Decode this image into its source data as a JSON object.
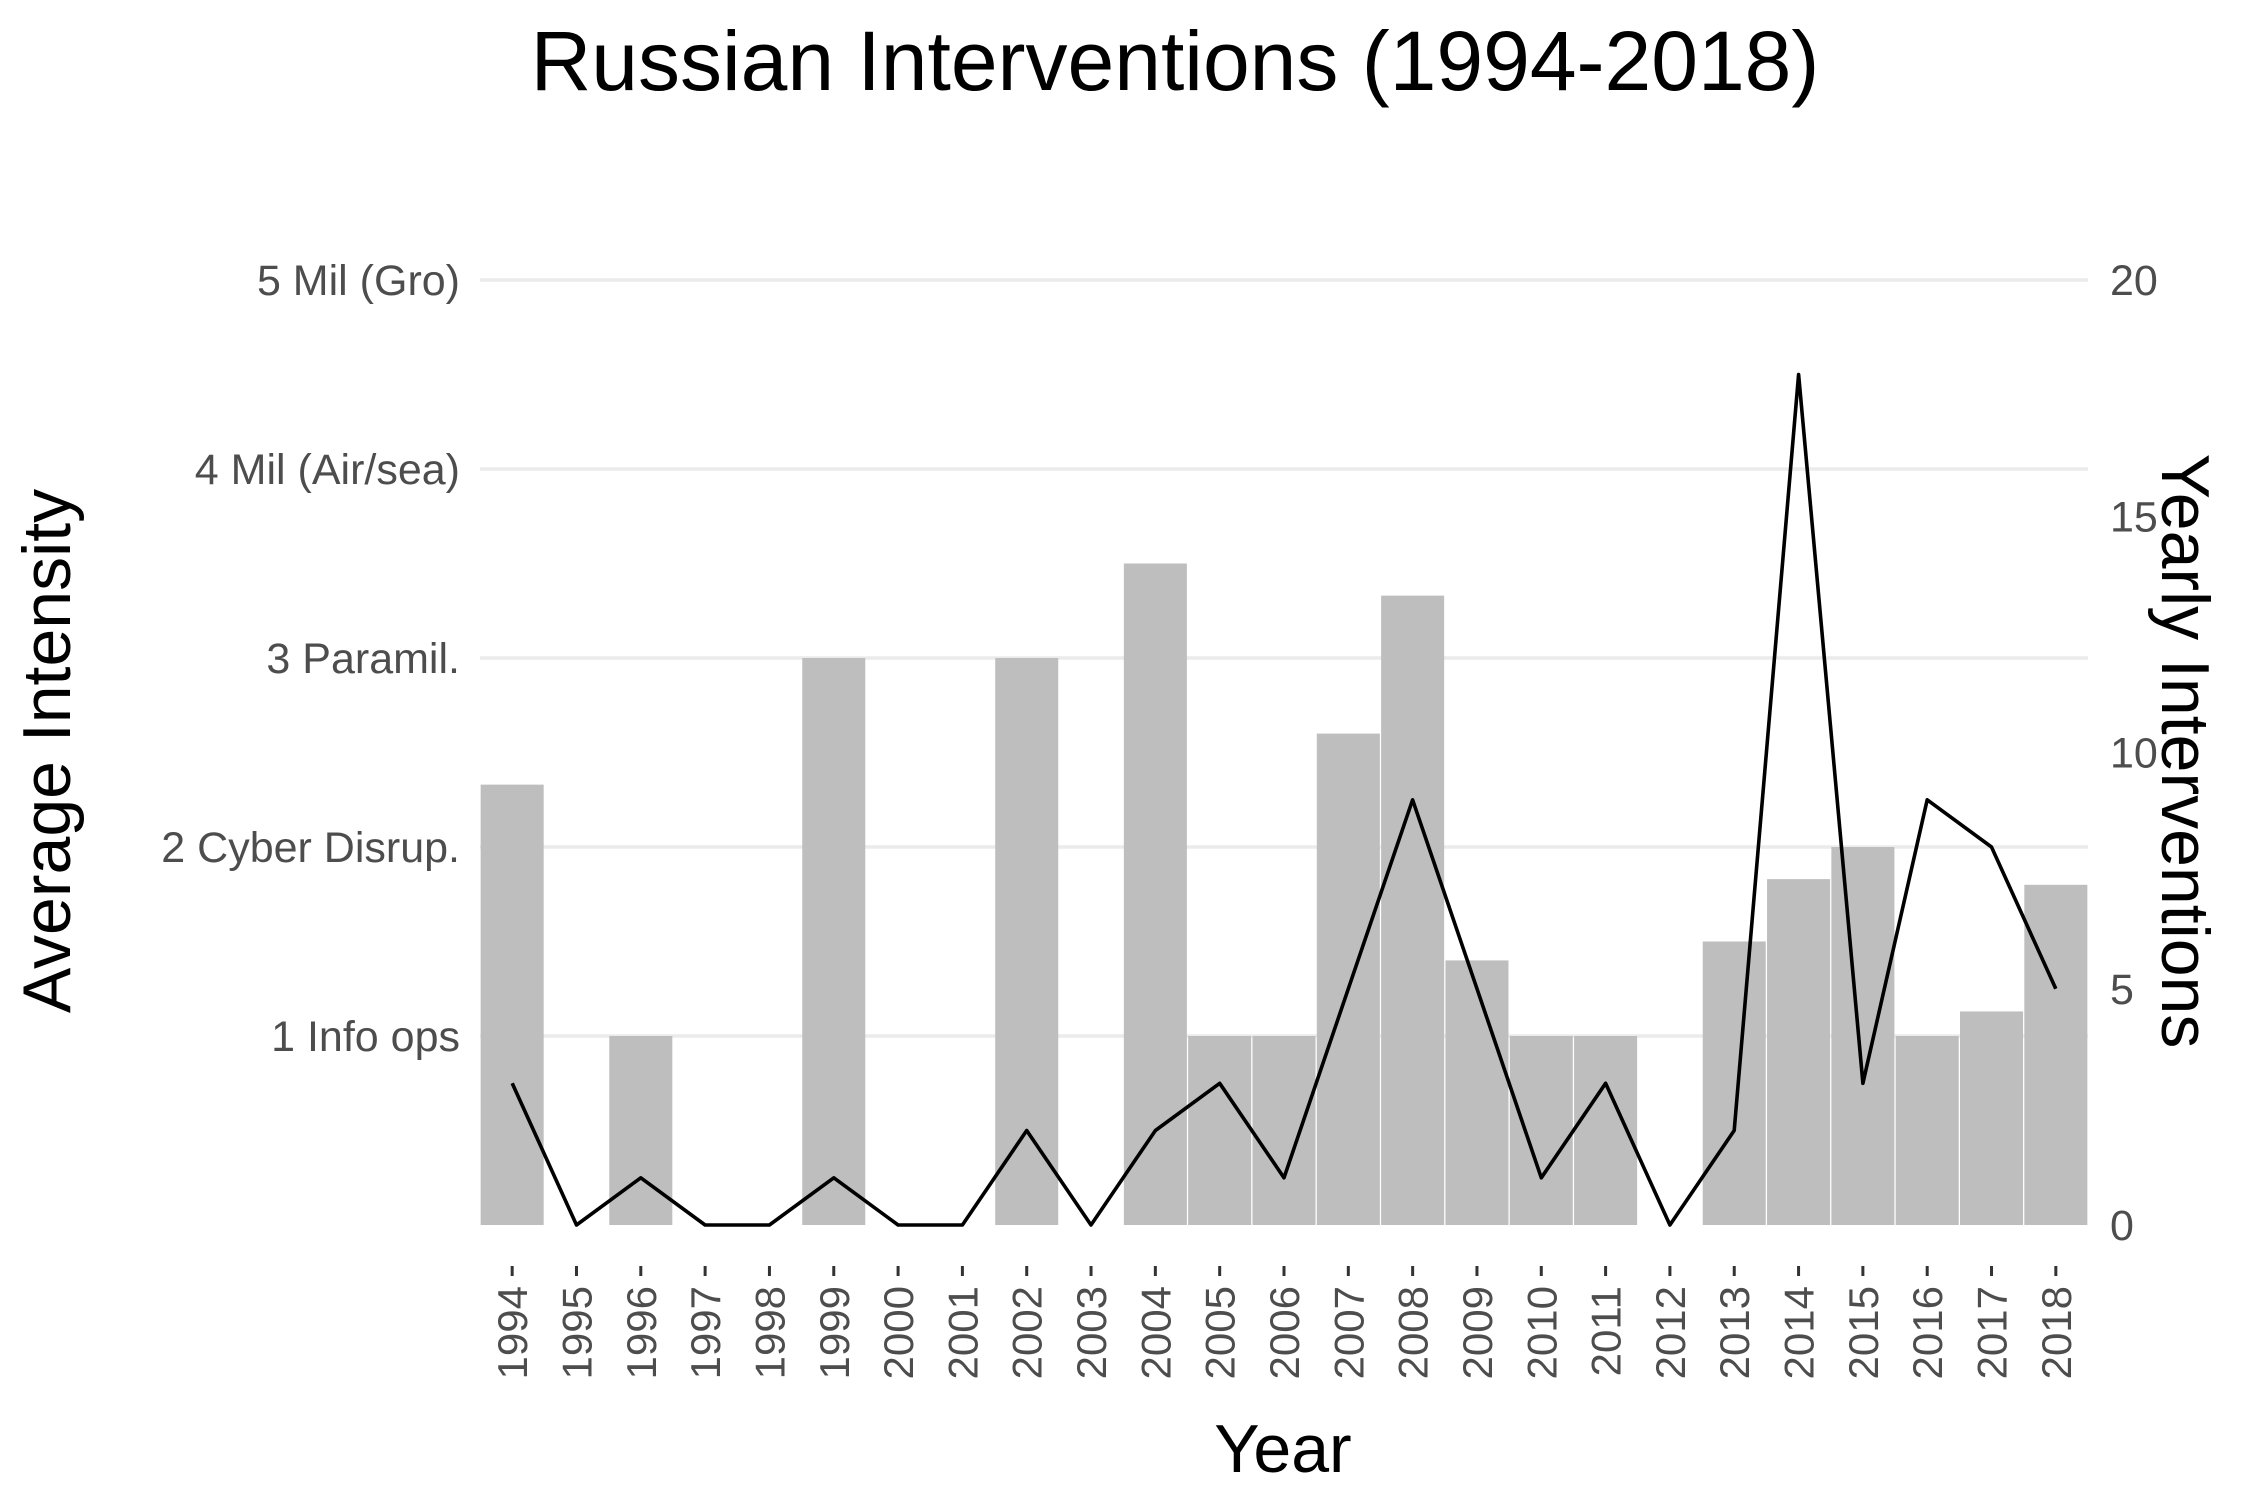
{
  "chart_data": {
    "type": "bar",
    "title": "Russian Interventions (1994-2018)",
    "xlabel": "Year",
    "ylabel": "Average Intensity",
    "ylabel_right": "Yearly Interventions",
    "categories": [
      "1994",
      "1995",
      "1996",
      "1997",
      "1998",
      "1999",
      "2000",
      "2001",
      "2002",
      "2003",
      "2004",
      "2005",
      "2006",
      "2007",
      "2008",
      "2009",
      "2010",
      "2011",
      "2012",
      "2013",
      "2014",
      "2015",
      "2016",
      "2017",
      "2018"
    ],
    "ylim": [
      0,
      5
    ],
    "ylim_right": [
      0,
      20
    ],
    "y_ticks": [
      {
        "value": 1,
        "label": "1 Info ops"
      },
      {
        "value": 2,
        "label": "2 Cyber Disrup."
      },
      {
        "value": 3,
        "label": "3 Paramil."
      },
      {
        "value": 4,
        "label": "4 Mil (Air/sea)"
      },
      {
        "value": 5,
        "label": "5 Mil (Gro)"
      }
    ],
    "y_right_ticks": [
      {
        "value": 0,
        "label": "0"
      },
      {
        "value": 5,
        "label": "5"
      },
      {
        "value": 10,
        "label": "10"
      },
      {
        "value": 15,
        "label": "15"
      },
      {
        "value": 20,
        "label": "20"
      }
    ],
    "grid": true,
    "legend": "none",
    "series": [
      {
        "type": "bar",
        "axis": "left",
        "color": "#bebebe",
        "values": [
          2.33,
          0,
          1.0,
          0,
          0,
          3.0,
          0,
          0,
          3.0,
          0,
          3.5,
          1.0,
          1.0,
          2.6,
          3.33,
          1.4,
          1.0,
          1.0,
          0,
          1.5,
          1.83,
          2.0,
          1.0,
          1.13,
          1.8
        ]
      },
      {
        "type": "line",
        "axis": "right",
        "color": "#000000",
        "values": [
          3,
          0,
          1,
          0,
          0,
          1,
          0,
          0,
          2,
          0,
          2,
          3,
          1,
          5,
          9,
          5,
          1,
          3,
          0,
          2,
          18,
          3,
          9,
          8,
          5
        ]
      }
    ]
  }
}
